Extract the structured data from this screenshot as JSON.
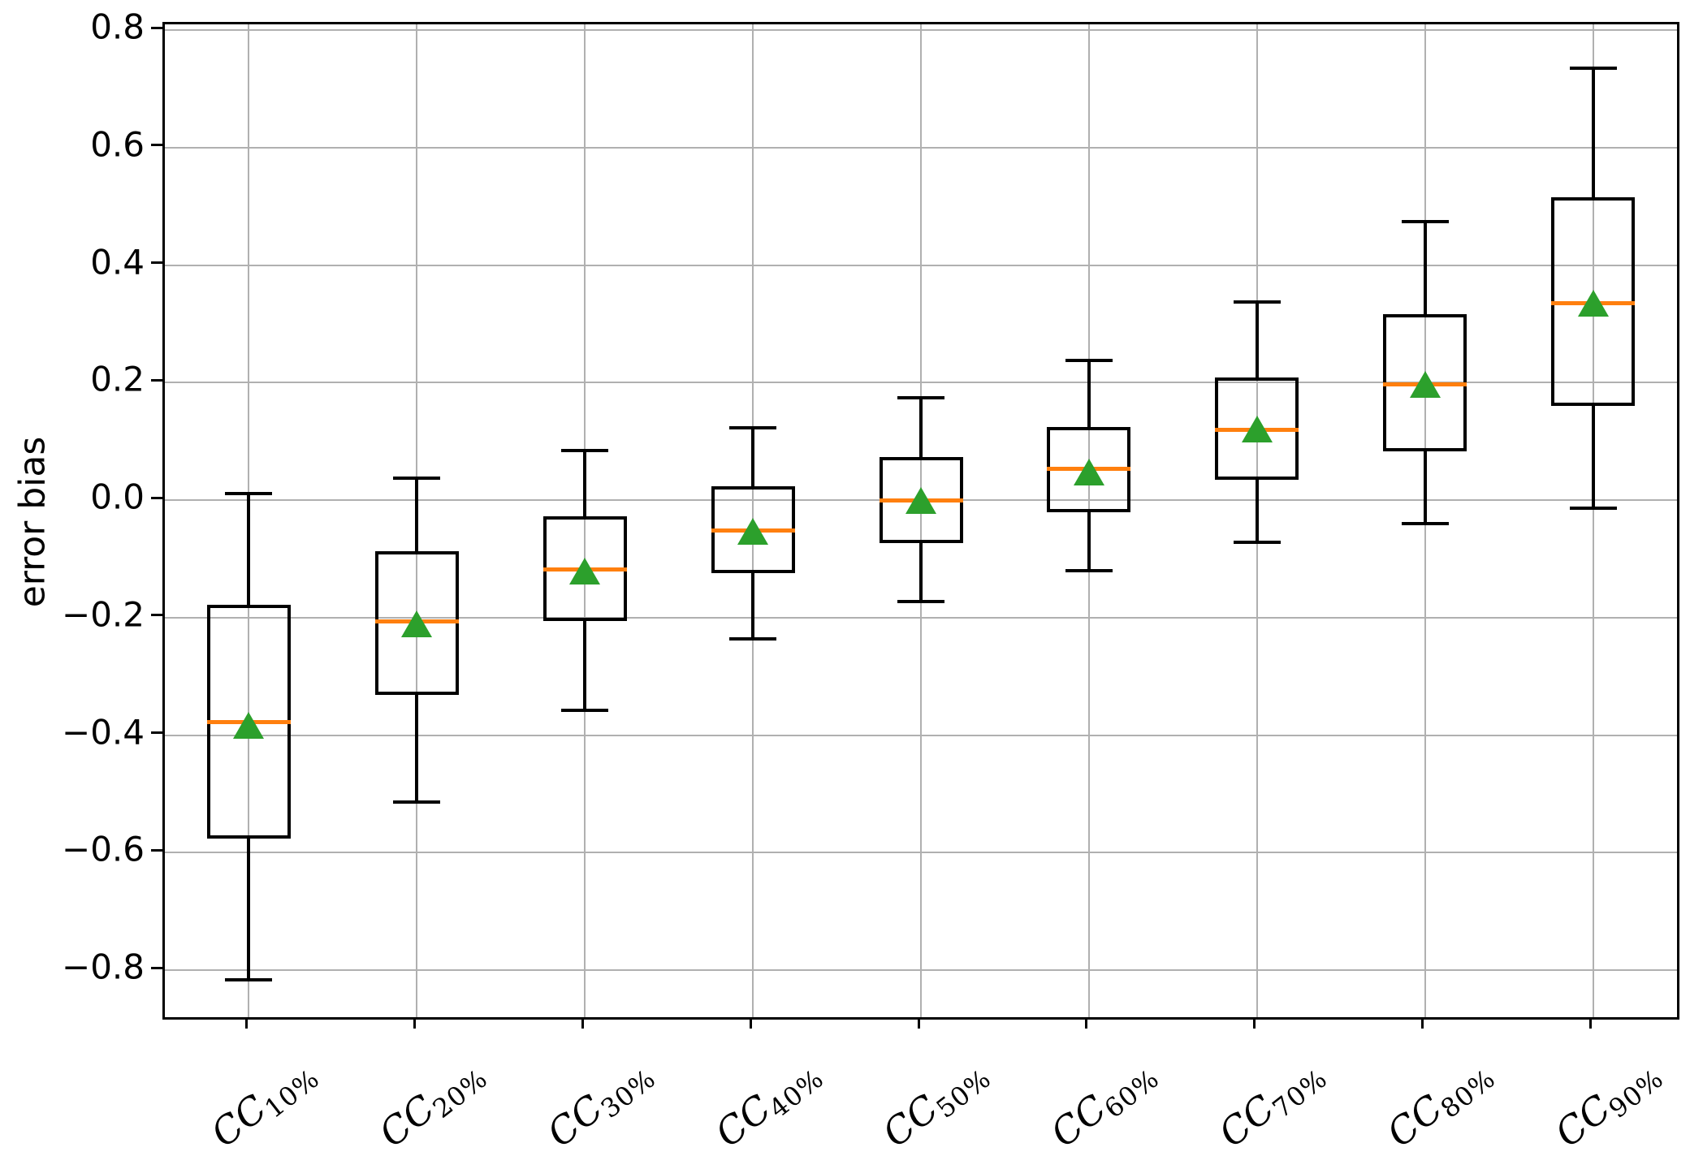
{
  "figure": {
    "background": "#ffffff"
  },
  "chart_data": {
    "type": "boxplot",
    "title": "",
    "xlabel": "",
    "ylabel": "error bias",
    "grid": true,
    "legend": "none",
    "ylim": [
      -0.88,
      0.81
    ],
    "yticks": [
      0.8,
      0.6,
      0.4,
      0.2,
      0.0,
      -0.2,
      -0.4,
      -0.6,
      -0.8
    ],
    "ytick_labels": [
      "0.8",
      "0.6",
      "0.4",
      "0.2",
      "0.0",
      "−0.2",
      "−0.4",
      "−0.6",
      "−0.8"
    ],
    "categories": [
      {
        "base": "CC",
        "sub": "10%"
      },
      {
        "base": "CC",
        "sub": "20%"
      },
      {
        "base": "CC",
        "sub": "30%"
      },
      {
        "base": "CC",
        "sub": "40%"
      },
      {
        "base": "CC",
        "sub": "50%"
      },
      {
        "base": "CC",
        "sub": "60%"
      },
      {
        "base": "CC",
        "sub": "70%"
      },
      {
        "base": "CC",
        "sub": "80%"
      },
      {
        "base": "CC",
        "sub": "90%"
      }
    ],
    "boxes": [
      {
        "whislo": -0.816,
        "q1": -0.576,
        "med": -0.378,
        "mean": -0.383,
        "q3": -0.178,
        "whishi": 0.011
      },
      {
        "whislo": -0.514,
        "q1": -0.331,
        "med": -0.207,
        "mean": -0.21,
        "q3": -0.087,
        "whishi": 0.037
      },
      {
        "whislo": -0.358,
        "q1": -0.206,
        "med": -0.118,
        "mean": -0.121,
        "q3": -0.028,
        "whishi": 0.085
      },
      {
        "whislo": -0.236,
        "q1": -0.124,
        "med": -0.051,
        "mean": -0.053,
        "q3": 0.024,
        "whishi": 0.123
      },
      {
        "whislo": -0.172,
        "q1": -0.073,
        "med": 0.0,
        "mean": 0.0,
        "q3": 0.073,
        "whishi": 0.174
      },
      {
        "whislo": -0.12,
        "q1": -0.021,
        "med": 0.053,
        "mean": 0.048,
        "q3": 0.125,
        "whishi": 0.238
      },
      {
        "whislo": -0.071,
        "q1": 0.035,
        "med": 0.12,
        "mean": 0.121,
        "q3": 0.209,
        "whishi": 0.337
      },
      {
        "whislo": -0.04,
        "q1": 0.083,
        "med": 0.197,
        "mean": 0.197,
        "q3": 0.317,
        "whishi": 0.474
      },
      {
        "whislo": -0.013,
        "q1": 0.16,
        "med": 0.335,
        "mean": 0.336,
        "q3": 0.515,
        "whishi": 0.735
      }
    ],
    "mean_marker_shape": "triangle_up",
    "colors": {
      "box_edge": "#000000",
      "whisker": "#000000",
      "median": "#ff7f0e",
      "mean_marker": "#2ca02c",
      "grid": "#b0b0b0",
      "text": "#000000",
      "background": "#ffffff"
    }
  }
}
